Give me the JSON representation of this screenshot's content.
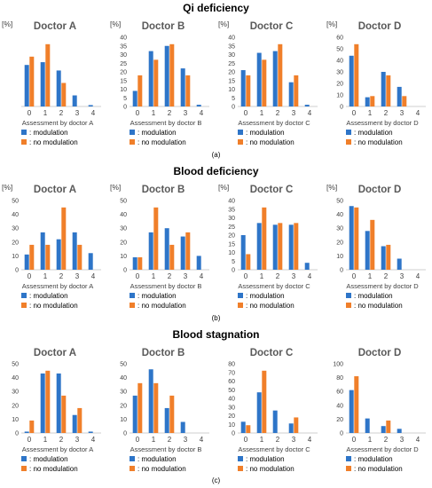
{
  "sections": [
    {
      "title": "Qi deficiency",
      "label": "(a)"
    },
    {
      "title": "Blood deficiency",
      "label": "(b)"
    },
    {
      "title": "Blood stagnation",
      "label": "(c)"
    }
  ],
  "legend": {
    "modulation": ": modulation",
    "no_modulation": ": no modulation"
  },
  "colors": {
    "modulation": "#2e75c8",
    "no_modulation": "#f07f2a"
  },
  "chart_data": [
    {
      "type": "bar",
      "section": 0,
      "title": "Doctor A",
      "ylabel": "[%]",
      "xlabel": "Assessment by doctor A",
      "categories": [
        "0",
        "1",
        "2",
        "3",
        "4"
      ],
      "ylim": [
        0,
        50
      ],
      "yticks": [],
      "series": [
        {
          "name": "modulation",
          "values": [
            30,
            32,
            26,
            8,
            1
          ]
        },
        {
          "name": "no modulation",
          "values": [
            36,
            45,
            17,
            0,
            0
          ]
        }
      ]
    },
    {
      "type": "bar",
      "section": 0,
      "title": "Doctor B",
      "ylabel": "[%]",
      "xlabel": "Assessment by doctor B",
      "categories": [
        "0",
        "1",
        "2",
        "3",
        "4"
      ],
      "ylim": [
        0,
        40
      ],
      "yticks": [
        0,
        5,
        10,
        15,
        20,
        25,
        30,
        35,
        40
      ],
      "series": [
        {
          "name": "modulation",
          "values": [
            9,
            32,
            35,
            22,
            1
          ]
        },
        {
          "name": "no modulation",
          "values": [
            18,
            27,
            36,
            18,
            0
          ]
        }
      ]
    },
    {
      "type": "bar",
      "section": 0,
      "title": "Doctor C",
      "ylabel": "[%]",
      "xlabel": "Assessment by doctor C",
      "categories": [
        "0",
        "1",
        "2",
        "3",
        "4"
      ],
      "ylim": [
        0,
        40
      ],
      "yticks": [
        0,
        5,
        10,
        15,
        20,
        25,
        30,
        35,
        40
      ],
      "series": [
        {
          "name": "modulation",
          "values": [
            21,
            31,
            32,
            14,
            1
          ]
        },
        {
          "name": "no modulation",
          "values": [
            18,
            27,
            36,
            18,
            0
          ]
        }
      ]
    },
    {
      "type": "bar",
      "section": 0,
      "title": "Doctor D",
      "ylabel": "[%]",
      "xlabel": "Assessment by doctor D",
      "categories": [
        "0",
        "1",
        "2",
        "3",
        "4"
      ],
      "ylim": [
        0,
        60
      ],
      "yticks": [
        0,
        10,
        20,
        30,
        40,
        50,
        60
      ],
      "series": [
        {
          "name": "modulation",
          "values": [
            44,
            8,
            30,
            17,
            0
          ]
        },
        {
          "name": "no modulation",
          "values": [
            54,
            9,
            27,
            9,
            0
          ]
        }
      ]
    },
    {
      "type": "bar",
      "section": 1,
      "title": "Doctor A",
      "ylabel": "[%]",
      "xlabel": "Assessment by doctor A",
      "categories": [
        "0",
        "1",
        "2",
        "3",
        "4"
      ],
      "ylim": [
        0,
        50
      ],
      "yticks": [
        0,
        10,
        20,
        30,
        40,
        50
      ],
      "series": [
        {
          "name": "modulation",
          "values": [
            11,
            27,
            22,
            27,
            12
          ]
        },
        {
          "name": "no modulation",
          "values": [
            18,
            18,
            45,
            18,
            0
          ]
        }
      ]
    },
    {
      "type": "bar",
      "section": 1,
      "title": "Doctor B",
      "ylabel": "[%]",
      "xlabel": "Assessment by doctor B",
      "categories": [
        "0",
        "1",
        "2",
        "3",
        "4"
      ],
      "ylim": [
        0,
        50
      ],
      "yticks": [
        0,
        10,
        20,
        30,
        40,
        50
      ],
      "series": [
        {
          "name": "modulation",
          "values": [
            9,
            27,
            30,
            24,
            10
          ]
        },
        {
          "name": "no modulation",
          "values": [
            9,
            45,
            18,
            27,
            0
          ]
        }
      ]
    },
    {
      "type": "bar",
      "section": 1,
      "title": "Doctor C",
      "ylabel": "[%]",
      "xlabel": "Assessment by doctor C",
      "categories": [
        "0",
        "1",
        "2",
        "3",
        "4"
      ],
      "ylim": [
        0,
        40
      ],
      "yticks": [
        0,
        5,
        10,
        15,
        20,
        25,
        30,
        35,
        40
      ],
      "series": [
        {
          "name": "modulation",
          "values": [
            20,
            27,
            26,
            26,
            4
          ]
        },
        {
          "name": "no modulation",
          "values": [
            9,
            36,
            27,
            27,
            0
          ]
        }
      ]
    },
    {
      "type": "bar",
      "section": 1,
      "title": "Doctor D",
      "ylabel": "[%]",
      "xlabel": "Assessment by doctor D",
      "categories": [
        "0",
        "1",
        "2",
        "3",
        "4"
      ],
      "ylim": [
        0,
        50
      ],
      "yticks": [
        0,
        10,
        20,
        30,
        40,
        50
      ],
      "series": [
        {
          "name": "modulation",
          "values": [
            46,
            28,
            17,
            8,
            0
          ]
        },
        {
          "name": "no modulation",
          "values": [
            45,
            36,
            18,
            0,
            0
          ]
        }
      ]
    },
    {
      "type": "bar",
      "section": 2,
      "title": "Doctor A",
      "ylabel": "",
      "xlabel": "Assessment by doctor A",
      "categories": [
        "0",
        "1",
        "2",
        "3",
        "4"
      ],
      "ylim": [
        0,
        50
      ],
      "yticks": [
        0,
        10,
        20,
        30,
        40,
        50
      ],
      "series": [
        {
          "name": "modulation",
          "values": [
            1,
            43,
            43,
            13,
            1
          ]
        },
        {
          "name": "no modulation",
          "values": [
            9,
            45,
            27,
            18,
            0
          ]
        }
      ]
    },
    {
      "type": "bar",
      "section": 2,
      "title": "Doctor B",
      "ylabel": "",
      "xlabel": "Assessment by doctor B",
      "categories": [
        "0",
        "1",
        "2",
        "3",
        "4"
      ],
      "ylim": [
        0,
        50
      ],
      "yticks": [
        0,
        10,
        20,
        30,
        40,
        50
      ],
      "series": [
        {
          "name": "modulation",
          "values": [
            27,
            46,
            18,
            8,
            0
          ]
        },
        {
          "name": "no modulation",
          "values": [
            36,
            36,
            27,
            0,
            0
          ]
        }
      ]
    },
    {
      "type": "bar",
      "section": 2,
      "title": "Doctor C",
      "ylabel": "",
      "xlabel": "Assessment by doctor C",
      "categories": [
        "0",
        "1",
        "2",
        "3",
        "4"
      ],
      "ylim": [
        0,
        80
      ],
      "yticks": [
        0,
        10,
        20,
        30,
        40,
        50,
        60,
        70,
        80
      ],
      "series": [
        {
          "name": "modulation",
          "values": [
            13,
            47,
            26,
            11,
            0
          ]
        },
        {
          "name": "no modulation",
          "values": [
            9,
            72,
            0,
            18,
            0
          ]
        }
      ]
    },
    {
      "type": "bar",
      "section": 2,
      "title": "Doctor D",
      "ylabel": "",
      "xlabel": "Assessment by doctor D",
      "categories": [
        "0",
        "1",
        "2",
        "3",
        "4"
      ],
      "ylim": [
        0,
        100
      ],
      "yticks": [
        0,
        20,
        40,
        60,
        80,
        100
      ],
      "series": [
        {
          "name": "modulation",
          "values": [
            62,
            21,
            10,
            6,
            0
          ]
        },
        {
          "name": "no modulation",
          "values": [
            82,
            0,
            18,
            0,
            0
          ]
        }
      ]
    }
  ]
}
